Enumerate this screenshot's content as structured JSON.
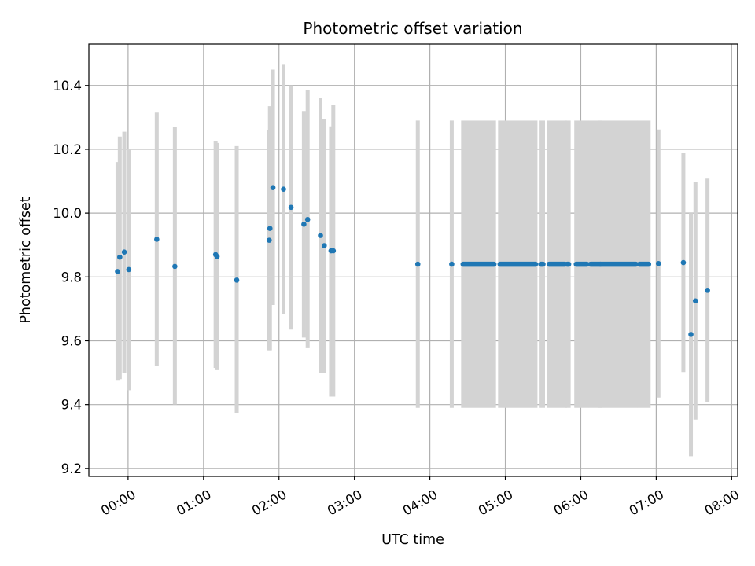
{
  "chart_data": {
    "type": "scatter",
    "title": "Photometric offset variation",
    "xlabel": "UTC time",
    "ylabel": "Photometric offset",
    "x_unit": "hours",
    "xlim": [
      -0.52,
      8.08
    ],
    "ylim": [
      9.175,
      10.53
    ],
    "x_ticks": [
      {
        "value": 0,
        "label": "00:00"
      },
      {
        "value": 1,
        "label": "01:00"
      },
      {
        "value": 2,
        "label": "02:00"
      },
      {
        "value": 3,
        "label": "03:00"
      },
      {
        "value": 4,
        "label": "04:00"
      },
      {
        "value": 5,
        "label": "05:00"
      },
      {
        "value": 6,
        "label": "06:00"
      },
      {
        "value": 7,
        "label": "07:00"
      },
      {
        "value": 8,
        "label": "08:00"
      }
    ],
    "y_ticks": [
      {
        "value": 9.2,
        "label": "9.2"
      },
      {
        "value": 9.4,
        "label": "9.4"
      },
      {
        "value": 9.6,
        "label": "9.6"
      },
      {
        "value": 9.8,
        "label": "9.8"
      },
      {
        "value": 10.0,
        "label": "10.0"
      },
      {
        "value": 10.2,
        "label": "10.2"
      },
      {
        "value": 10.4,
        "label": "10.4"
      }
    ],
    "grid": true,
    "colors": {
      "points": "#1f77b4",
      "errorbars": "#d3d3d3",
      "grid": "#b0b0b0"
    },
    "points": [
      {
        "x": -0.14,
        "y": 9.817,
        "lo": 9.475,
        "hi": 10.16
      },
      {
        "x": -0.11,
        "y": 9.862,
        "lo": 9.48,
        "hi": 10.24
      },
      {
        "x": -0.05,
        "y": 9.878,
        "lo": 9.5,
        "hi": 10.255
      },
      {
        "x": 0.01,
        "y": 9.823,
        "lo": 9.445,
        "hi": 10.2
      },
      {
        "x": 0.38,
        "y": 9.918,
        "lo": 9.52,
        "hi": 10.315
      },
      {
        "x": 0.62,
        "y": 9.833,
        "lo": 9.4,
        "hi": 10.27
      },
      {
        "x": 1.16,
        "y": 9.87,
        "lo": 9.515,
        "hi": 10.225
      },
      {
        "x": 1.18,
        "y": 9.864,
        "lo": 9.508,
        "hi": 10.22
      },
      {
        "x": 1.44,
        "y": 9.79,
        "lo": 9.373,
        "hi": 10.21
      },
      {
        "x": 1.87,
        "y": 9.915,
        "lo": 9.57,
        "hi": 10.26
      },
      {
        "x": 1.88,
        "y": 9.952,
        "lo": 9.57,
        "hi": 10.335
      },
      {
        "x": 1.92,
        "y": 10.08,
        "lo": 9.712,
        "hi": 10.45
      },
      {
        "x": 2.06,
        "y": 10.075,
        "lo": 9.685,
        "hi": 10.465
      },
      {
        "x": 2.16,
        "y": 10.018,
        "lo": 9.635,
        "hi": 10.4
      },
      {
        "x": 2.33,
        "y": 9.965,
        "lo": 9.61,
        "hi": 10.32
      },
      {
        "x": 2.38,
        "y": 9.98,
        "lo": 9.577,
        "hi": 10.385
      },
      {
        "x": 2.55,
        "y": 9.93,
        "lo": 9.5,
        "hi": 10.36
      },
      {
        "x": 2.6,
        "y": 9.898,
        "lo": 9.5,
        "hi": 10.295
      },
      {
        "x": 2.69,
        "y": 9.882,
        "lo": 9.425,
        "hi": 10.272
      },
      {
        "x": 2.72,
        "y": 9.882,
        "lo": 9.425,
        "hi": 10.34
      },
      {
        "x": 3.84,
        "y": 9.84,
        "lo": 9.39,
        "hi": 10.29
      },
      {
        "x": 4.29,
        "y": 9.84,
        "lo": 9.39,
        "hi": 10.29
      },
      {
        "x": 7.03,
        "y": 9.842,
        "lo": 9.422,
        "hi": 10.262
      },
      {
        "x": 7.36,
        "y": 9.845,
        "lo": 9.502,
        "hi": 10.188
      },
      {
        "x": 7.46,
        "y": 9.62,
        "lo": 9.238,
        "hi": 10.0
      },
      {
        "x": 7.52,
        "y": 9.725,
        "lo": 9.353,
        "hi": 10.098
      },
      {
        "x": 7.68,
        "y": 9.758,
        "lo": 9.408,
        "hi": 10.108
      }
    ],
    "dense_segments": [
      {
        "x_start": 4.44,
        "x_end": 4.85,
        "y": 9.84,
        "lo": 9.39,
        "hi": 10.29
      },
      {
        "x_start": 4.93,
        "x_end": 5.4,
        "y": 9.84,
        "lo": 9.39,
        "hi": 10.29
      },
      {
        "x_start": 5.47,
        "x_end": 5.5,
        "y": 9.84,
        "lo": 9.39,
        "hi": 10.29
      },
      {
        "x_start": 5.58,
        "x_end": 5.79,
        "y": 9.84,
        "lo": 9.39,
        "hi": 10.29
      },
      {
        "x_start": 5.82,
        "x_end": 5.84,
        "y": 9.84,
        "lo": 9.39,
        "hi": 10.29
      },
      {
        "x_start": 5.94,
        "x_end": 6.08,
        "y": 9.84,
        "lo": 9.39,
        "hi": 10.29
      },
      {
        "x_start": 6.13,
        "x_end": 6.26,
        "y": 9.84,
        "lo": 9.39,
        "hi": 10.29
      },
      {
        "x_start": 6.26,
        "x_end": 6.73,
        "y": 9.84,
        "lo": 9.39,
        "hi": 10.29
      },
      {
        "x_start": 6.78,
        "x_end": 6.9,
        "y": 9.84,
        "lo": 9.39,
        "hi": 10.29
      }
    ]
  }
}
